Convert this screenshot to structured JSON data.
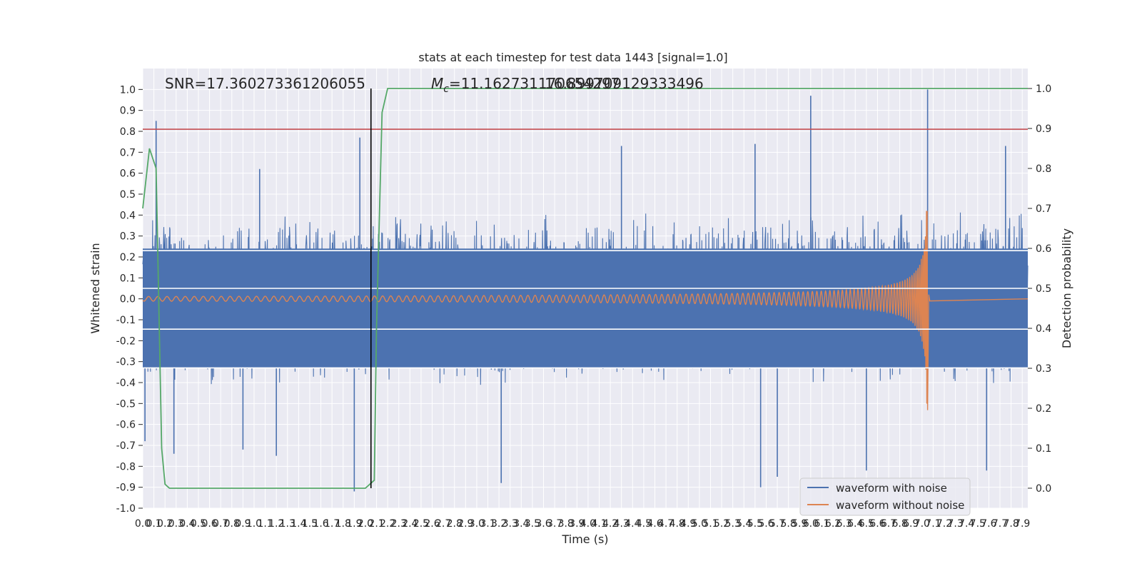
{
  "chart_data": {
    "type": "line",
    "title": "stats at each timestep for test data 1443 [signal=1.0]",
    "xlabel": "Time (s)",
    "ylabel": "Whitened strain",
    "y2label": "Detection probability",
    "xlim": [
      0.0,
      7.95
    ],
    "ylim": [
      -1.0,
      1.1
    ],
    "y2lim": [
      -0.05,
      1.05
    ],
    "grid": true,
    "legend_position": "lower-right",
    "annotations": {
      "snr_text": "SNR=17.360273361206055",
      "mc_text": "$M_c$=11.162731170654297",
      "extra_text": "16.899709129333496",
      "vertical_marker_x": 2.05,
      "threshold_y": 0.81
    },
    "xticks": [
      0.0,
      0.1,
      0.2,
      0.3,
      0.4,
      0.5,
      0.6,
      0.7,
      0.8,
      0.9,
      1.0,
      1.1,
      1.2,
      1.3,
      1.4,
      1.5,
      1.6,
      1.7,
      1.8,
      1.9,
      2.0,
      2.1,
      2.2,
      2.3,
      2.4,
      2.5,
      2.6,
      2.7,
      2.8,
      2.9,
      3.0,
      3.1,
      3.2,
      3.3,
      3.4,
      3.5,
      3.6,
      3.7,
      3.8,
      3.9,
      4.0,
      4.1,
      4.2,
      4.3,
      4.4,
      4.5,
      4.6,
      4.7,
      4.8,
      4.9,
      5.0,
      5.1,
      5.2,
      5.3,
      5.4,
      5.5,
      5.6,
      5.7,
      5.8,
      5.9,
      6.0,
      6.1,
      6.2,
      6.3,
      6.4,
      6.5,
      6.6,
      6.7,
      6.8,
      6.9,
      7.0,
      7.1,
      7.2,
      7.3,
      7.4,
      7.5,
      7.6,
      7.7,
      7.8,
      7.9
    ],
    "yticks": [
      -1.0,
      -0.9,
      -0.8,
      -0.7,
      -0.6,
      -0.5,
      -0.4,
      -0.3,
      -0.2,
      -0.1,
      0.0,
      0.1,
      0.2,
      0.3,
      0.4,
      0.5,
      0.6,
      0.7,
      0.8,
      0.9,
      1.0
    ],
    "y2ticks": [
      0.0,
      0.1,
      0.2,
      0.3,
      0.4,
      0.5,
      0.6,
      0.7,
      0.8,
      0.9,
      1.0
    ],
    "series": [
      {
        "name": "waveform with noise",
        "color": "#4c72b0",
        "kind": "noise_strain",
        "typical_envelope": 0.42,
        "spikes": [
          [
            0.12,
            0.85
          ],
          [
            1.95,
            0.77
          ],
          [
            0.02,
            -0.68
          ],
          [
            0.28,
            -0.74
          ],
          [
            0.9,
            -0.72
          ],
          [
            1.2,
            -0.75
          ],
          [
            1.9,
            -0.92
          ],
          [
            3.22,
            -0.88
          ],
          [
            5.55,
            -0.9
          ],
          [
            5.7,
            -0.85
          ],
          [
            6.0,
            0.97
          ],
          [
            6.5,
            -0.82
          ],
          [
            7.05,
            1.0
          ],
          [
            7.58,
            -0.82
          ],
          [
            7.75,
            0.73
          ],
          [
            5.5,
            0.74
          ],
          [
            1.05,
            0.62
          ],
          [
            4.3,
            0.73
          ]
        ]
      },
      {
        "name": "waveform without noise",
        "color": "#dd8452",
        "kind": "chirp",
        "merger_time": 7.05,
        "peak_upper": 0.42,
        "peak_lower": -0.63
      },
      {
        "name": "detection probability",
        "color": "#55a868",
        "axis": "right",
        "x": [
          0.0,
          0.06,
          0.12,
          0.17,
          0.2,
          0.24,
          0.26,
          2.0,
          2.08,
          2.1,
          2.15,
          2.2,
          7.95
        ],
        "y": [
          0.7,
          0.85,
          0.8,
          0.1,
          0.01,
          0.0,
          0.0,
          0.0,
          0.02,
          0.4,
          0.94,
          1.0,
          1.0
        ]
      },
      {
        "name": "threshold",
        "color": "#c44e52",
        "kind": "hline",
        "y": 0.81
      }
    ],
    "legend": [
      "waveform with noise",
      "waveform without noise"
    ]
  }
}
